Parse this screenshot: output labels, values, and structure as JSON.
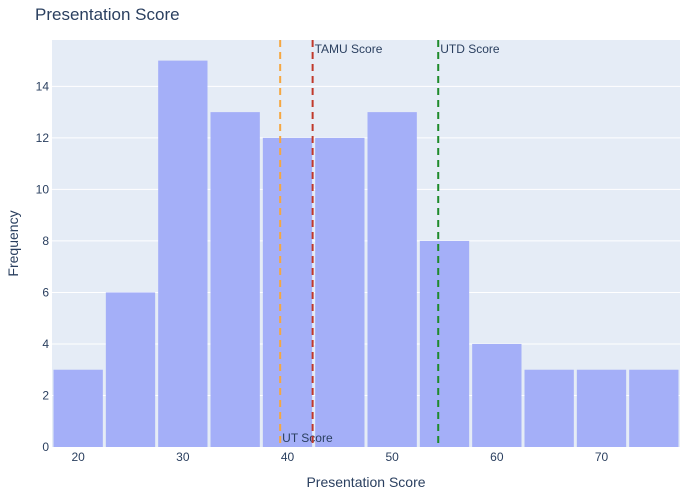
{
  "chart_data": {
    "type": "bar",
    "title": "Presentation Score",
    "xlabel": "Presentation Score",
    "ylabel": "Frequency",
    "xlim": [
      17.5,
      77.5
    ],
    "ylim": [
      0,
      15.8
    ],
    "x_ticks": [
      20,
      30,
      40,
      50,
      60,
      70
    ],
    "y_ticks": [
      0,
      2,
      4,
      6,
      8,
      10,
      12,
      14
    ],
    "bin_width": 5,
    "bins": [
      {
        "start": 17.5,
        "end": 22.5,
        "count": 3
      },
      {
        "start": 22.5,
        "end": 27.5,
        "count": 6
      },
      {
        "start": 27.5,
        "end": 32.5,
        "count": 15
      },
      {
        "start": 32.5,
        "end": 37.5,
        "count": 13
      },
      {
        "start": 37.5,
        "end": 42.5,
        "count": 12
      },
      {
        "start": 42.5,
        "end": 47.5,
        "count": 12
      },
      {
        "start": 47.5,
        "end": 52.5,
        "count": 13
      },
      {
        "start": 52.5,
        "end": 57.5,
        "count": 8
      },
      {
        "start": 57.5,
        "end": 62.5,
        "count": 4
      },
      {
        "start": 62.5,
        "end": 67.5,
        "count": 3
      },
      {
        "start": 67.5,
        "end": 72.5,
        "count": 3
      },
      {
        "start": 72.5,
        "end": 77.5,
        "count": 3
      }
    ],
    "bar_color": "#a4aff8",
    "grid": true,
    "background": "#e5ecf6",
    "reference_lines": [
      {
        "label": "UT Score",
        "x": 39.3,
        "color": "#f5a742",
        "label_position": "bottom"
      },
      {
        "label": "TAMU Score",
        "x": 42.4,
        "color": "#c0392b",
        "label_position": "top"
      },
      {
        "label": "UTD Score",
        "x": 54.4,
        "color": "#1e8a2b",
        "label_position": "top"
      }
    ]
  }
}
